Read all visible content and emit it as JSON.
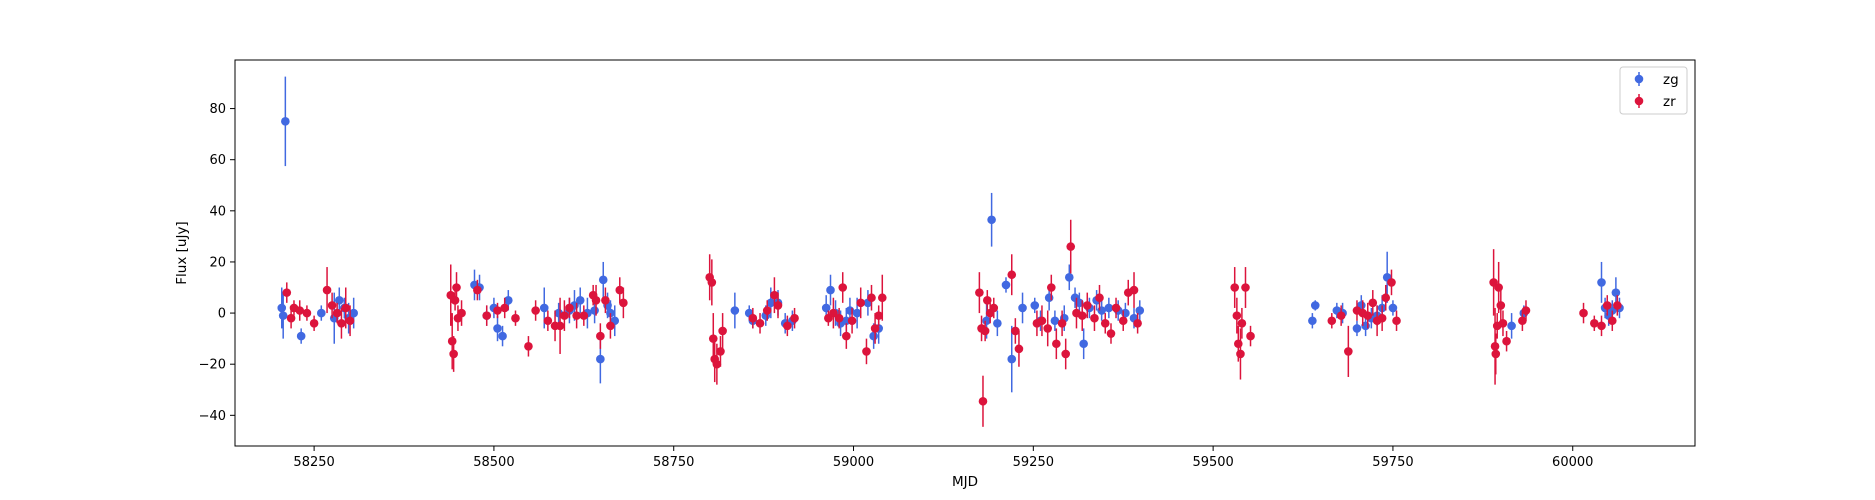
{
  "chart_data": {
    "type": "scatter",
    "title": "",
    "xlabel": "MJD",
    "ylabel": "Flux [uJy]",
    "xlim": [
      58140,
      60170
    ],
    "ylim": [
      -52,
      99
    ],
    "xticks": [
      58250,
      58500,
      58750,
      59000,
      59250,
      59500,
      59750,
      60000
    ],
    "yticks": [
      -40,
      -20,
      0,
      20,
      40,
      60,
      80
    ],
    "grid": false,
    "legend_position": "top-right",
    "error_bars": true,
    "series": [
      {
        "name": "zg",
        "color": "#4169e1",
        "points": [
          [
            58205,
            2,
            8
          ],
          [
            58207,
            -1,
            9
          ],
          [
            58210,
            75,
            17.5
          ],
          [
            58232,
            -9,
            3
          ],
          [
            58260,
            0,
            3
          ],
          [
            58278,
            -2,
            10
          ],
          [
            58285,
            5,
            5
          ],
          [
            58292,
            2,
            4
          ],
          [
            58298,
            -2,
            6
          ],
          [
            58305,
            0,
            6
          ],
          [
            58473,
            11,
            6
          ],
          [
            58480,
            10,
            5
          ],
          [
            58490,
            -1,
            4
          ],
          [
            58500,
            2,
            4
          ],
          [
            58505,
            -6,
            5
          ],
          [
            58512,
            -9,
            4
          ],
          [
            58520,
            5,
            4
          ],
          [
            58570,
            2,
            8
          ],
          [
            58590,
            0,
            4
          ],
          [
            58605,
            1,
            5
          ],
          [
            58612,
            3,
            6
          ],
          [
            58620,
            5,
            5
          ],
          [
            58630,
            0,
            6
          ],
          [
            58640,
            1,
            5
          ],
          [
            58648,
            -18,
            9.5
          ],
          [
            58652,
            13,
            7
          ],
          [
            58658,
            3,
            5
          ],
          [
            58662,
            0,
            5
          ],
          [
            58668,
            -3,
            6
          ],
          [
            58835,
            1,
            7
          ],
          [
            58855,
            0,
            3
          ],
          [
            58860,
            -3,
            3
          ],
          [
            58878,
            -1,
            4
          ],
          [
            58885,
            4,
            6
          ],
          [
            58895,
            4,
            5
          ],
          [
            58905,
            -4,
            4
          ],
          [
            58915,
            -3,
            4
          ],
          [
            58962,
            2,
            5
          ],
          [
            58968,
            9,
            6
          ],
          [
            58975,
            0,
            5
          ],
          [
            58982,
            -4,
            5
          ],
          [
            58990,
            -3,
            5
          ],
          [
            58995,
            1,
            5
          ],
          [
            59005,
            0,
            6
          ],
          [
            59020,
            4,
            5
          ],
          [
            59028,
            -9,
            5
          ],
          [
            59035,
            -6,
            6
          ],
          [
            59185,
            -3,
            7
          ],
          [
            59192,
            36.5,
            10.5
          ],
          [
            59200,
            -4,
            5
          ],
          [
            59212,
            11,
            3
          ],
          [
            59220,
            -18,
            13
          ],
          [
            59235,
            2,
            6
          ],
          [
            59252,
            3,
            3
          ],
          [
            59260,
            -3,
            4
          ],
          [
            59272,
            6,
            5
          ],
          [
            59280,
            -3,
            4
          ],
          [
            59293,
            -2,
            5
          ],
          [
            59300,
            14,
            5
          ],
          [
            59308,
            6,
            4
          ],
          [
            59314,
            4,
            4
          ],
          [
            59320,
            -12,
            6
          ],
          [
            59328,
            2,
            4
          ],
          [
            59338,
            5,
            4
          ],
          [
            59345,
            1,
            4
          ],
          [
            59355,
            2,
            4
          ],
          [
            59368,
            1,
            4
          ],
          [
            59378,
            0,
            4
          ],
          [
            59390,
            -2,
            4
          ],
          [
            59398,
            1,
            4
          ],
          [
            59638,
            -3,
            3
          ],
          [
            59642,
            3,
            2
          ],
          [
            59672,
            1,
            3
          ],
          [
            59680,
            0,
            4
          ],
          [
            59700,
            -6,
            3
          ],
          [
            59706,
            3,
            4
          ],
          [
            59712,
            -5,
            4
          ],
          [
            59720,
            -2,
            4
          ],
          [
            59728,
            -1,
            4
          ],
          [
            59735,
            2,
            5
          ],
          [
            59742,
            14,
            10
          ],
          [
            59750,
            2,
            3
          ],
          [
            59915,
            -5,
            5
          ],
          [
            59932,
            0,
            3
          ],
          [
            60040,
            12,
            8
          ],
          [
            60045,
            2,
            4
          ],
          [
            60050,
            -1,
            4
          ],
          [
            60055,
            1,
            4
          ],
          [
            60060,
            8,
            6
          ],
          [
            60065,
            2,
            4
          ]
        ]
      },
      {
        "name": "zr",
        "color": "#dc143c",
        "points": [
          [
            58212,
            8,
            4
          ],
          [
            58218,
            -2,
            4
          ],
          [
            58222,
            2,
            3
          ],
          [
            58230,
            1,
            4
          ],
          [
            58240,
            0,
            3
          ],
          [
            58250,
            -4,
            3
          ],
          [
            58268,
            9,
            9
          ],
          [
            58275,
            3,
            5
          ],
          [
            58282,
            0,
            4
          ],
          [
            58288,
            -4,
            6
          ],
          [
            58294,
            2,
            8
          ],
          [
            58300,
            -3,
            6
          ],
          [
            58440,
            7,
            12
          ],
          [
            58442,
            -11,
            11
          ],
          [
            58444,
            -16,
            7
          ],
          [
            58446,
            5,
            4
          ],
          [
            58448,
            10,
            6
          ],
          [
            58450,
            -2,
            5
          ],
          [
            58455,
            0,
            5
          ],
          [
            58477,
            9,
            4
          ],
          [
            58490,
            -1,
            4
          ],
          [
            58505,
            1,
            3
          ],
          [
            58515,
            2,
            4
          ],
          [
            58530,
            -2,
            3
          ],
          [
            58548,
            -13,
            4
          ],
          [
            58558,
            1,
            4
          ],
          [
            58575,
            -3,
            4
          ],
          [
            58585,
            -5,
            6
          ],
          [
            58592,
            -5,
            11
          ],
          [
            58598,
            -1,
            6
          ],
          [
            58605,
            2,
            4
          ],
          [
            58615,
            -1,
            5
          ],
          [
            58625,
            -1,
            4
          ],
          [
            58638,
            7,
            4
          ],
          [
            58642,
            5,
            6
          ],
          [
            58648,
            -9,
            5
          ],
          [
            58655,
            5,
            5
          ],
          [
            58662,
            -5,
            5
          ],
          [
            58675,
            9,
            5
          ],
          [
            58680,
            4,
            6
          ],
          [
            58800,
            14,
            9
          ],
          [
            58803,
            12,
            9
          ],
          [
            58805,
            -10,
            10
          ],
          [
            58807,
            -18,
            9
          ],
          [
            58810,
            -20,
            8
          ],
          [
            58815,
            -15,
            6
          ],
          [
            58818,
            -7,
            7
          ],
          [
            58860,
            -2,
            4
          ],
          [
            58870,
            -4,
            4
          ],
          [
            58880,
            1,
            4
          ],
          [
            58890,
            7,
            7
          ],
          [
            58895,
            3,
            5
          ],
          [
            58908,
            -5,
            4
          ],
          [
            58918,
            -2,
            4
          ],
          [
            58965,
            -2,
            3
          ],
          [
            58972,
            0,
            6
          ],
          [
            58980,
            -2,
            4
          ],
          [
            58985,
            10,
            6
          ],
          [
            58990,
            -9,
            5
          ],
          [
            58998,
            -3,
            5
          ],
          [
            59010,
            4,
            6
          ],
          [
            59018,
            -15,
            5
          ],
          [
            59025,
            6,
            5
          ],
          [
            59030,
            -6,
            6
          ],
          [
            59035,
            -1,
            4
          ],
          [
            59040,
            6,
            9
          ],
          [
            59175,
            8,
            8
          ],
          [
            59178,
            -6,
            5
          ],
          [
            59180,
            -34.5,
            10
          ],
          [
            59183,
            -7,
            4
          ],
          [
            59186,
            5,
            4
          ],
          [
            59190,
            0,
            4
          ],
          [
            59195,
            2,
            4
          ],
          [
            59220,
            15,
            8
          ],
          [
            59225,
            -7,
            5
          ],
          [
            59230,
            -14,
            7
          ],
          [
            59255,
            -4,
            5
          ],
          [
            59262,
            -3,
            6
          ],
          [
            59270,
            -6,
            7
          ],
          [
            59275,
            10,
            5
          ],
          [
            59282,
            -12,
            6
          ],
          [
            59290,
            -4,
            5
          ],
          [
            59295,
            -16,
            6
          ],
          [
            59302,
            26,
            10.5
          ],
          [
            59310,
            0,
            6
          ],
          [
            59318,
            -1,
            6
          ],
          [
            59325,
            3,
            5
          ],
          [
            59335,
            -2,
            5
          ],
          [
            59342,
            6,
            5
          ],
          [
            59350,
            -4,
            4
          ],
          [
            59358,
            -8,
            4
          ],
          [
            59365,
            2,
            4
          ],
          [
            59375,
            -3,
            4
          ],
          [
            59382,
            8,
            5
          ],
          [
            59390,
            9,
            7
          ],
          [
            59395,
            -4,
            4
          ],
          [
            59530,
            10,
            8
          ],
          [
            59533,
            -1,
            7
          ],
          [
            59535,
            -12,
            7
          ],
          [
            59538,
            -16,
            10
          ],
          [
            59540,
            -4,
            6
          ],
          [
            59545,
            10,
            8
          ],
          [
            59552,
            -9,
            4
          ],
          [
            59665,
            -3,
            3
          ],
          [
            59678,
            -1,
            4
          ],
          [
            59688,
            -15,
            10
          ],
          [
            59700,
            1,
            4
          ],
          [
            59708,
            0,
            5
          ],
          [
            59715,
            -1,
            5
          ],
          [
            59722,
            4,
            5
          ],
          [
            59728,
            -3,
            6
          ],
          [
            59735,
            -2,
            5
          ],
          [
            59740,
            6,
            5
          ],
          [
            59748,
            12,
            5
          ],
          [
            59755,
            -3,
            4
          ],
          [
            59890,
            12,
            13
          ],
          [
            59892,
            -13,
            15
          ],
          [
            59893,
            -16,
            8
          ],
          [
            59895,
            -5,
            5
          ],
          [
            59897,
            10,
            10
          ],
          [
            59900,
            3,
            6
          ],
          [
            59903,
            -4,
            5
          ],
          [
            59908,
            -11,
            4
          ],
          [
            59930,
            -3,
            4
          ],
          [
            59935,
            1,
            4
          ],
          [
            60015,
            0,
            4
          ],
          [
            60030,
            -4,
            3
          ],
          [
            60040,
            -5,
            4
          ],
          [
            60048,
            3,
            4
          ],
          [
            60055,
            -3,
            4
          ],
          [
            60062,
            3,
            4
          ]
        ]
      }
    ]
  }
}
